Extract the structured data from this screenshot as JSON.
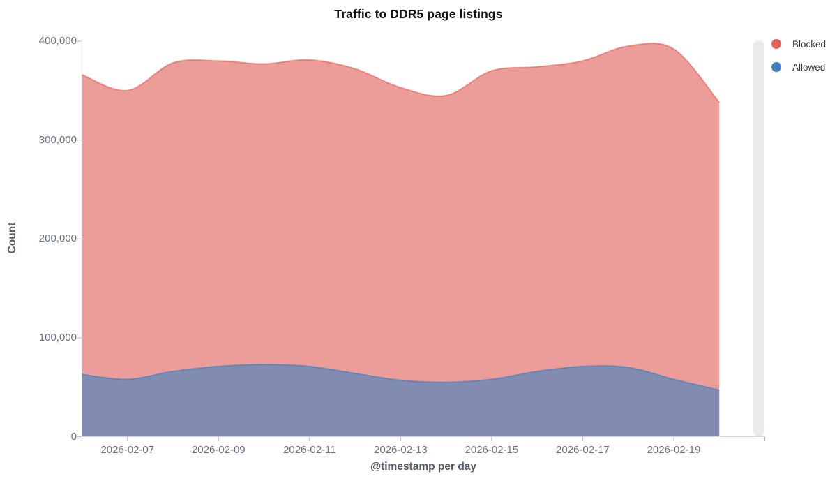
{
  "chart_data": {
    "type": "area",
    "variant": "layered-overlapping-areas",
    "title": "Traffic to DDR5 page listings",
    "xlabel": "@timestamp per day",
    "ylabel": "Count",
    "x": [
      "2026-02-06",
      "2026-02-07",
      "2026-02-08",
      "2026-02-09",
      "2026-02-10",
      "2026-02-11",
      "2026-02-12",
      "2026-02-13",
      "2026-02-14",
      "2026-02-15",
      "2026-02-16",
      "2026-02-17",
      "2026-02-18",
      "2026-02-19",
      "2026-02-20"
    ],
    "series": [
      {
        "name": "Blocked",
        "color": "#E2615B",
        "values": [
          366000,
          350000,
          378000,
          380000,
          377000,
          381000,
          372000,
          353000,
          345000,
          370000,
          374000,
          380000,
          395000,
          392000,
          338000
        ]
      },
      {
        "name": "Allowed",
        "color": "#4081BE",
        "values": [
          63000,
          58000,
          66000,
          71000,
          73000,
          71000,
          64000,
          57000,
          55000,
          58000,
          66000,
          71000,
          70000,
          58000,
          47000
        ]
      }
    ],
    "ylim": [
      0,
      400000
    ],
    "fill_opacity": 0.62,
    "grid": false,
    "legend_position": "top-right",
    "y_ticks": [
      {
        "value": 0,
        "label": "0"
      },
      {
        "value": 100000,
        "label": "100,000"
      },
      {
        "value": 200000,
        "label": "200,000"
      },
      {
        "value": 300000,
        "label": "300,000"
      },
      {
        "value": 400000,
        "label": "400,000"
      }
    ],
    "x_ticks": [
      {
        "index": 0,
        "label": ""
      },
      {
        "index": 1,
        "label": "2026-02-07"
      },
      {
        "index": 3,
        "label": "2026-02-09"
      },
      {
        "index": 5,
        "label": "2026-02-11"
      },
      {
        "index": 7,
        "label": "2026-02-13"
      },
      {
        "index": 9,
        "label": "2026-02-15"
      },
      {
        "index": 11,
        "label": "2026-02-17"
      },
      {
        "index": 13,
        "label": "2026-02-19"
      },
      {
        "index": 15,
        "label": ""
      }
    ]
  },
  "legend": {
    "items": [
      {
        "label": "Blocked",
        "color": "#E2615B"
      },
      {
        "label": "Allowed",
        "color": "#4081BE"
      }
    ]
  },
  "colors": {
    "background": "#FFFFFF",
    "axis_line": "#D8DCE1",
    "left_axis_line": "#ECEEF1",
    "tick_mark": "#AEB5BF",
    "tick_label": "#6A7280",
    "axis_title": "#535A66",
    "title_text": "#111111",
    "legend_text": "#343741",
    "scrollbar_thumb": "#E9EAED"
  }
}
